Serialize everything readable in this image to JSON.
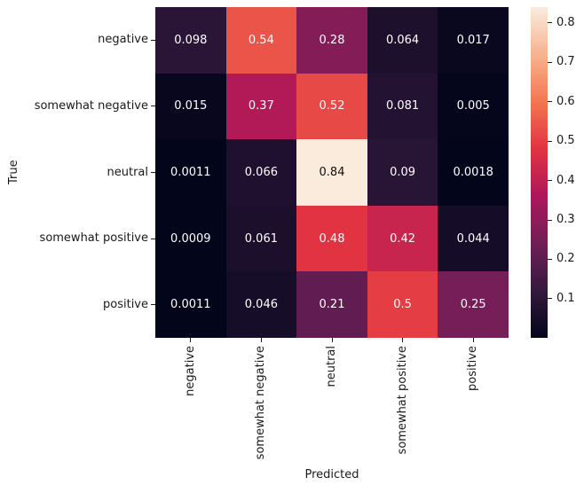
{
  "chart_data": {
    "type": "heatmap",
    "title": "",
    "xlabel": "Predicted",
    "ylabel": "True",
    "x_categories": [
      "negative",
      "somewhat negative",
      "neutral",
      "somewhat positive",
      "positive"
    ],
    "y_categories": [
      "negative",
      "somewhat negative",
      "neutral",
      "somewhat positive",
      "positive"
    ],
    "matrix": [
      [
        0.098,
        0.54,
        0.28,
        0.064,
        0.017
      ],
      [
        0.015,
        0.37,
        0.52,
        0.081,
        0.005
      ],
      [
        0.0011,
        0.066,
        0.84,
        0.09,
        0.0018
      ],
      [
        0.0009,
        0.061,
        0.48,
        0.42,
        0.044
      ],
      [
        0.0011,
        0.046,
        0.21,
        0.5,
        0.25
      ]
    ],
    "cell_labels": [
      [
        "0.098",
        "0.54",
        "0.28",
        "0.064",
        "0.017"
      ],
      [
        "0.015",
        "0.37",
        "0.52",
        "0.081",
        "0.005"
      ],
      [
        "0.0011",
        "0.066",
        "0.84",
        "0.09",
        "0.0018"
      ],
      [
        "0.0009",
        "0.061",
        "0.48",
        "0.42",
        "0.044"
      ],
      [
        "0.0011",
        "0.046",
        "0.21",
        "0.5",
        "0.25"
      ]
    ],
    "vmin": 0.0009,
    "vmax": 0.84,
    "grid": false,
    "legend_position": "right",
    "colormap": {
      "name": "rocket",
      "stops": [
        {
          "t": 0.0,
          "color": "#03051A"
        },
        {
          "t": 0.143,
          "color": "#35193E"
        },
        {
          "t": 0.286,
          "color": "#701F57"
        },
        {
          "t": 0.429,
          "color": "#AD1759"
        },
        {
          "t": 0.571,
          "color": "#E13342"
        },
        {
          "t": 0.714,
          "color": "#F37651"
        },
        {
          "t": 0.857,
          "color": "#F6B48F"
        },
        {
          "t": 1.0,
          "color": "#FAEBDD"
        }
      ]
    },
    "colorbar_ticks": [
      "0.1",
      "0.2",
      "0.3",
      "0.4",
      "0.5",
      "0.6",
      "0.7",
      "0.8"
    ],
    "text_colors": {
      "light": "#ffffff",
      "dark": "#0f0f0f"
    },
    "background": "#ffffff"
  }
}
